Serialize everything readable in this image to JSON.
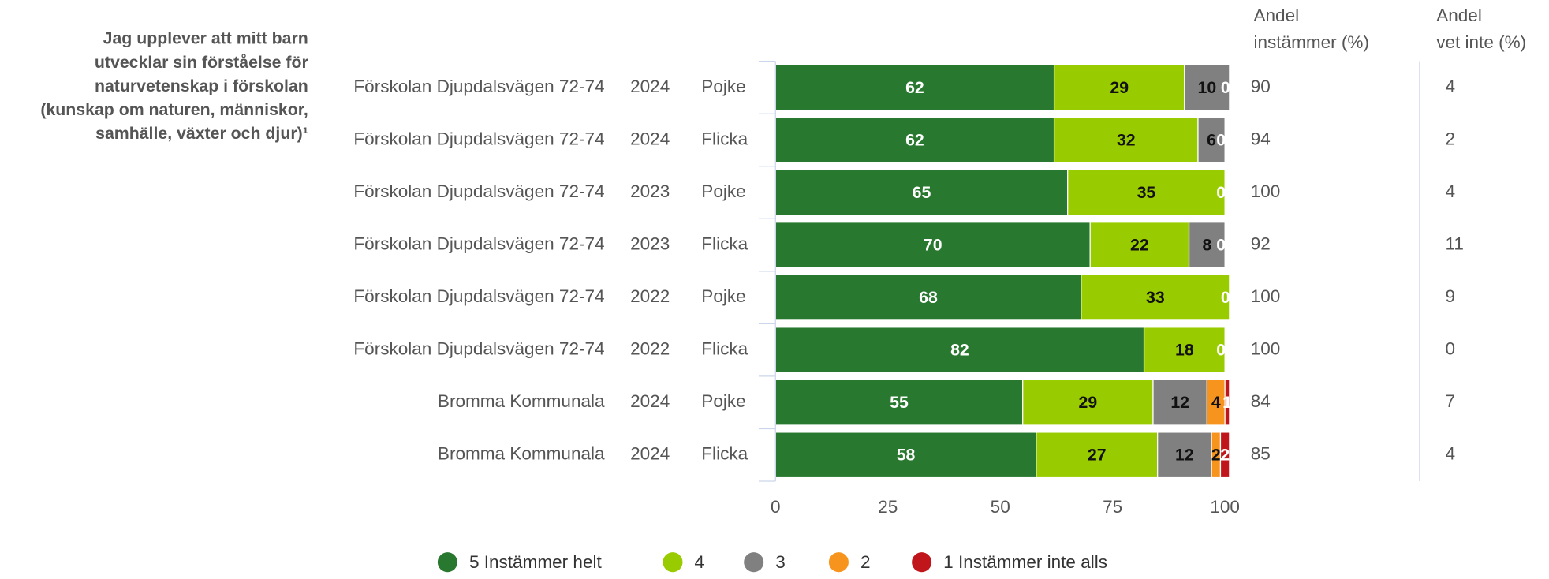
{
  "chart_data": {
    "type": "bar",
    "orientation": "horizontal",
    "stacked": true,
    "question_lines": [
      "Jag upplever att mitt barn",
      "utvecklar sin förståelse för",
      "naturvetenskap i förskolan",
      "(kunskap om naturen, människor,",
      "samhälle, växter och djur)¹"
    ],
    "categories": [
      [
        "Förskolan Djupdalsvägen 72-74",
        "2024",
        "Pojke"
      ],
      [
        "Förskolan Djupdalsvägen 72-74",
        "2024",
        "Flicka"
      ],
      [
        "Förskolan Djupdalsvägen 72-74",
        "2023",
        "Pojke"
      ],
      [
        "Förskolan Djupdalsvägen 72-74",
        "2023",
        "Flicka"
      ],
      [
        "Förskolan Djupdalsvägen 72-74",
        "2022",
        "Pojke"
      ],
      [
        "Förskolan Djupdalsvägen 72-74",
        "2022",
        "Flicka"
      ],
      [
        "Bromma Kommunala",
        "2024",
        "Pojke"
      ],
      [
        "Bromma Kommunala",
        "2024",
        "Flicka"
      ]
    ],
    "series": [
      {
        "name": "5 Instämmer helt",
        "color": "#28782f",
        "label_color": "#ffffff",
        "values": [
          62,
          62,
          65,
          70,
          68,
          82,
          55,
          58
        ]
      },
      {
        "name": "4",
        "color": "#99cc00",
        "label_color": "#111111",
        "values": [
          29,
          32,
          35,
          22,
          33,
          18,
          29,
          27
        ]
      },
      {
        "name": "3",
        "color": "#808080",
        "label_color": "#111111",
        "values": [
          10,
          6,
          null,
          8,
          null,
          null,
          12,
          12
        ]
      },
      {
        "name": "2",
        "color": "#f7941d",
        "label_color": "#111111",
        "values": [
          null,
          null,
          null,
          null,
          null,
          null,
          4,
          2
        ]
      },
      {
        "name": "1 Instämmer inte alls",
        "color": "#c0161b",
        "label_color": "#ffffff",
        "values": [
          0,
          0,
          0,
          0,
          0,
          0,
          1,
          2
        ]
      }
    ],
    "xlim": [
      0,
      100
    ],
    "xticks": [
      0,
      25,
      50,
      75,
      100
    ],
    "columns": [
      {
        "header": [
          "Andel",
          "instämmer (%)"
        ],
        "values": [
          90,
          94,
          100,
          92,
          100,
          100,
          84,
          85
        ]
      },
      {
        "header": [
          "Andel",
          "vet inte (%)"
        ],
        "values": [
          4,
          2,
          4,
          11,
          9,
          0,
          7,
          4
        ]
      }
    ]
  }
}
